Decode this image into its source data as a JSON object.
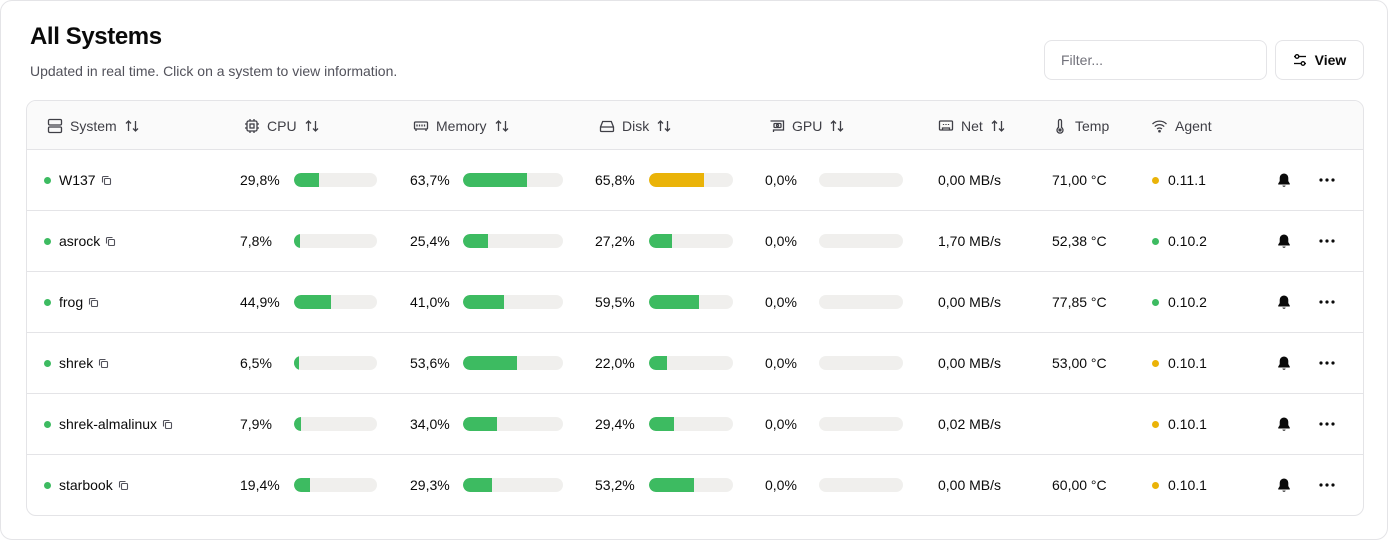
{
  "header": {
    "title": "All Systems",
    "subtitle": "Updated in real time. Click on a system to view information.",
    "filter_placeholder": "Filter...",
    "view_label": "View"
  },
  "columns": {
    "system": "System",
    "cpu": "CPU",
    "memory": "Memory",
    "disk": "Disk",
    "gpu": "GPU",
    "net": "Net",
    "temp": "Temp",
    "agent": "Agent"
  },
  "colors": {
    "green": "#3dbb61",
    "yellow": "#eab308",
    "track": "#f0efed"
  },
  "rows": [
    {
      "name": "W137",
      "status": "green",
      "cpu": "29,8%",
      "cpu_val": 29.8,
      "memory": "63,7%",
      "memory_val": 63.7,
      "disk": "65,8%",
      "disk_val": 65.8,
      "disk_color": "yellow",
      "gpu": "0,0%",
      "gpu_val": 0,
      "net": "0,00 MB/s",
      "temp": "71,00 °C",
      "agent": "0.11.1",
      "agent_status": "yellow"
    },
    {
      "name": "asrock",
      "status": "green",
      "cpu": "7,8%",
      "cpu_val": 7.8,
      "memory": "25,4%",
      "memory_val": 25.4,
      "disk": "27,2%",
      "disk_val": 27.2,
      "disk_color": "green",
      "gpu": "0,0%",
      "gpu_val": 0,
      "net": "1,70 MB/s",
      "temp": "52,38 °C",
      "agent": "0.10.2",
      "agent_status": "green"
    },
    {
      "name": "frog",
      "status": "green",
      "cpu": "44,9%",
      "cpu_val": 44.9,
      "memory": "41,0%",
      "memory_val": 41.0,
      "disk": "59,5%",
      "disk_val": 59.5,
      "disk_color": "green",
      "gpu": "0,0%",
      "gpu_val": 0,
      "net": "0,00 MB/s",
      "temp": "77,85 °C",
      "agent": "0.10.2",
      "agent_status": "green"
    },
    {
      "name": "shrek",
      "status": "green",
      "cpu": "6,5%",
      "cpu_val": 6.5,
      "memory": "53,6%",
      "memory_val": 53.6,
      "disk": "22,0%",
      "disk_val": 22.0,
      "disk_color": "green",
      "gpu": "0,0%",
      "gpu_val": 0,
      "net": "0,00 MB/s",
      "temp": "53,00 °C",
      "agent": "0.10.1",
      "agent_status": "yellow"
    },
    {
      "name": "shrek-almalinux",
      "status": "green",
      "cpu": "7,9%",
      "cpu_val": 7.9,
      "memory": "34,0%",
      "memory_val": 34.0,
      "disk": "29,4%",
      "disk_val": 29.4,
      "disk_color": "green",
      "gpu": "0,0%",
      "gpu_val": 0,
      "net": "0,02 MB/s",
      "temp": "",
      "agent": "0.10.1",
      "agent_status": "yellow"
    },
    {
      "name": "starbook",
      "status": "green",
      "cpu": "19,4%",
      "cpu_val": 19.4,
      "memory": "29,3%",
      "memory_val": 29.3,
      "disk": "53,2%",
      "disk_val": 53.2,
      "disk_color": "green",
      "gpu": "0,0%",
      "gpu_val": 0,
      "net": "0,00 MB/s",
      "temp": "60,00 °C",
      "agent": "0.10.1",
      "agent_status": "yellow"
    }
  ]
}
